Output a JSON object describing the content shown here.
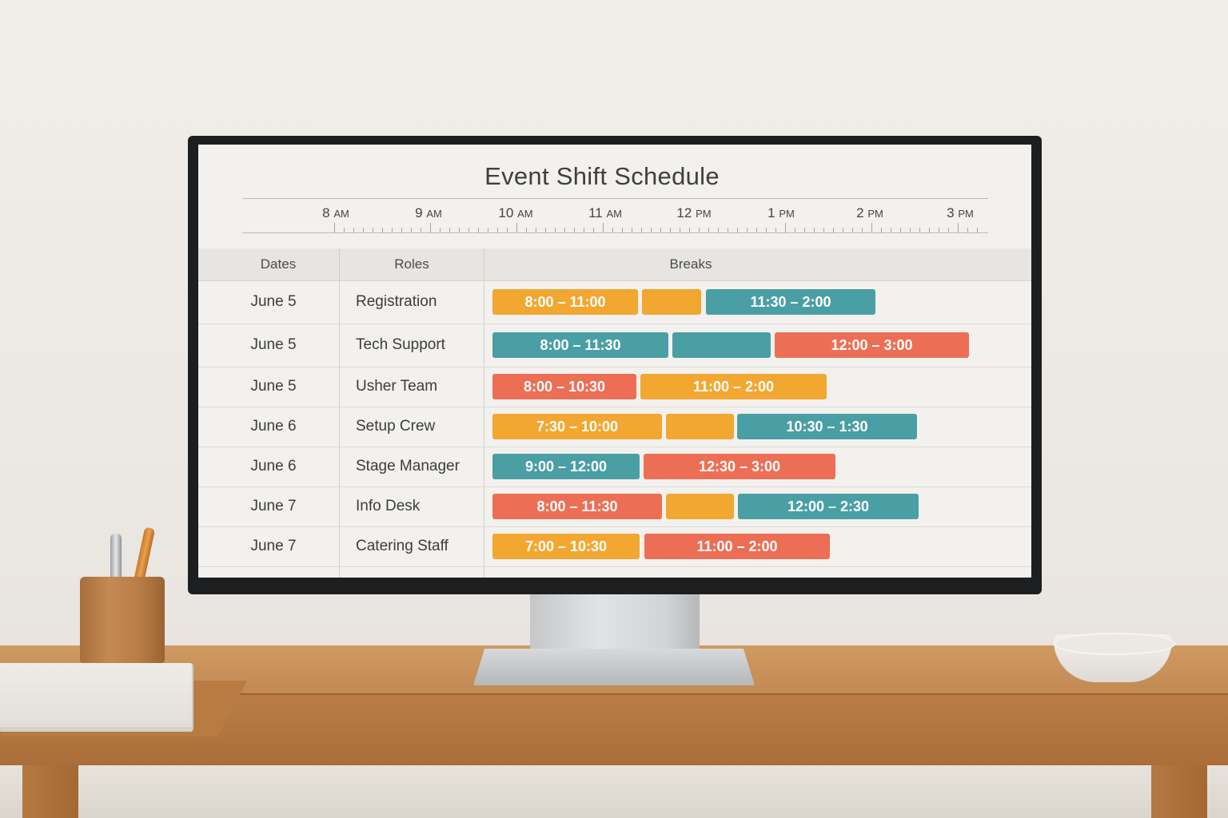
{
  "title": "Event Shift Schedule",
  "colors": {
    "amber": "#f2a731",
    "teal": "#4a9fa5",
    "coral": "#ec6f55"
  },
  "timeline": [
    {
      "hour": "8",
      "unit": "AM"
    },
    {
      "hour": "9",
      "unit": "AM"
    },
    {
      "hour": "10",
      "unit": "AM"
    },
    {
      "hour": "11",
      "unit": "AM"
    },
    {
      "hour": "12",
      "unit": "PM"
    },
    {
      "hour": "1",
      "unit": "PM"
    },
    {
      "hour": "2",
      "unit": "PM"
    },
    {
      "hour": "3",
      "unit": "PM"
    }
  ],
  "columns": {
    "dates": "Dates",
    "roles": "Roles",
    "breaks": "Breaks"
  },
  "rows": [
    {
      "date": "June 5",
      "role": "Registration",
      "shifts": [
        {
          "label": "8:00 – 11:00",
          "color": "amber"
        },
        {
          "label": "",
          "color": "amber"
        },
        {
          "label": "11:30 – 2:00",
          "color": "teal"
        }
      ]
    },
    {
      "date": "June 5",
      "role": "Tech Support",
      "shifts": [
        {
          "label": "8:00 – 11:30",
          "color": "teal"
        },
        {
          "label": "",
          "color": "teal"
        },
        {
          "label": "12:00 – 3:00",
          "color": "coral"
        }
      ]
    },
    {
      "date": "June 5",
      "role": "Usher Team",
      "shifts": [
        {
          "label": "8:00 – 10:30",
          "color": "coral"
        },
        {
          "label": "11:00 – 2:00",
          "color": "amber"
        }
      ]
    },
    {
      "date": "June 6",
      "role": "Setup Crew",
      "shifts": [
        {
          "label": "7:30 – 10:00",
          "color": "amber"
        },
        {
          "label": "",
          "color": "amber"
        },
        {
          "label": "10:30 – 1:30",
          "color": "teal"
        }
      ]
    },
    {
      "date": "June 6",
      "role": "Stage Manager",
      "shifts": [
        {
          "label": "9:00 – 12:00",
          "color": "teal"
        },
        {
          "label": "12:30 – 3:00",
          "color": "coral"
        }
      ]
    },
    {
      "date": "June 7",
      "role": "Info Desk",
      "shifts": [
        {
          "label": "8:00 – 11:30",
          "color": "coral"
        },
        {
          "label": "",
          "color": "amber"
        },
        {
          "label": "12:00 – 2:30",
          "color": "teal"
        }
      ]
    },
    {
      "date": "June 7",
      "role": "Catering Staff",
      "shifts": [
        {
          "label": "7:00 – 10:30",
          "color": "amber"
        },
        {
          "label": "11:00 – 2:00",
          "color": "coral"
        }
      ]
    }
  ]
}
